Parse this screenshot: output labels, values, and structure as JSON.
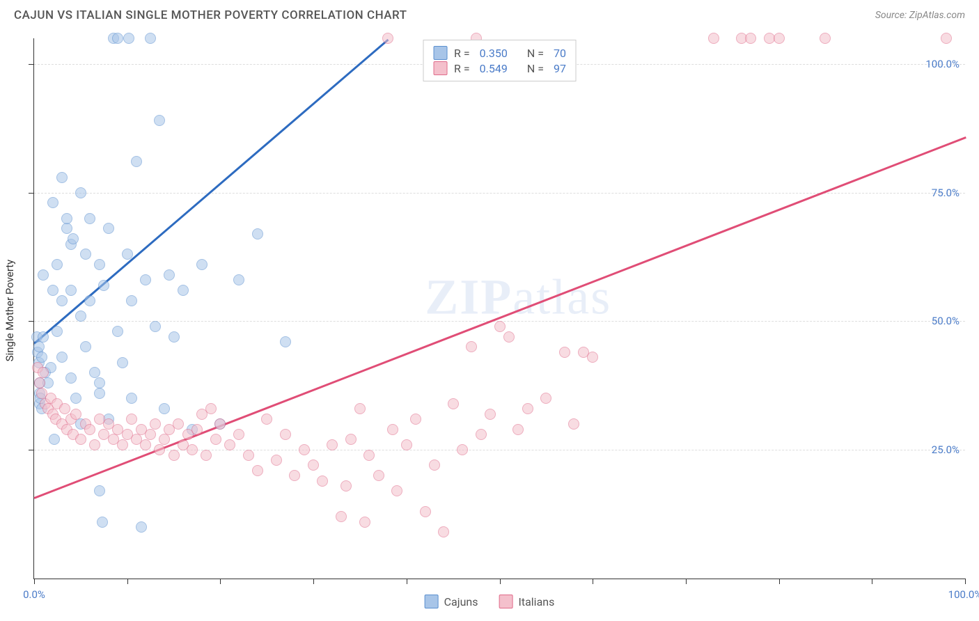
{
  "title": "CAJUN VS ITALIAN SINGLE MOTHER POVERTY CORRELATION CHART",
  "source": "Source: ZipAtlas.com",
  "ylabel": "Single Mother Poverty",
  "watermark_part1": "ZIP",
  "watermark_part2": "atlas",
  "chart": {
    "type": "scatter",
    "xlim": [
      0,
      100
    ],
    "ylim": [
      0,
      105
    ],
    "background_color": "#ffffff",
    "grid_color": "#dddddd",
    "axis_color": "#333333",
    "tick_label_color": "#4a7bc8",
    "label_fontsize": 15,
    "point_radius": 8,
    "point_opacity": 0.55,
    "line_width": 2.5,
    "y_gridlines": [
      25,
      50,
      75,
      100
    ],
    "y_tick_labels": [
      "25.0%",
      "50.0%",
      "75.0%",
      "100.0%"
    ],
    "x_ticks": [
      0,
      10,
      20,
      30,
      40,
      50,
      60,
      70,
      80,
      90,
      100
    ],
    "x_tick_labels_shown": {
      "0": "0.0%",
      "100": "100.0%"
    }
  },
  "legend_top": [
    {
      "r_label": "R =",
      "r_value": "0.350",
      "n_label": "N =",
      "n_value": "70",
      "swatch_fill": "#a8c5e8",
      "swatch_border": "#5a8fcf"
    },
    {
      "r_label": "R =",
      "r_value": "0.549",
      "n_label": "N =",
      "n_value": "97",
      "swatch_fill": "#f4c0cc",
      "swatch_border": "#e06b8a"
    }
  ],
  "legend_bottom": [
    {
      "label": "Cajuns",
      "swatch_fill": "#a8c5e8",
      "swatch_border": "#5a8fcf"
    },
    {
      "label": "Italians",
      "swatch_fill": "#f4c0cc",
      "swatch_border": "#e06b8a"
    }
  ],
  "series": [
    {
      "name": "Cajuns",
      "point_fill": "#a8c5e8",
      "point_stroke": "#5a8fcf",
      "line_color": "#2d6bc0",
      "trend": {
        "x1": 0,
        "y1": 46,
        "x2": 38,
        "y2": 105
      },
      "points": [
        [
          0.3,
          47
        ],
        [
          0.4,
          44
        ],
        [
          0.5,
          45
        ],
        [
          0.5,
          42
        ],
        [
          0.6,
          34
        ],
        [
          0.6,
          36
        ],
        [
          0.6,
          38
        ],
        [
          0.7,
          35
        ],
        [
          0.8,
          43
        ],
        [
          0.8,
          33
        ],
        [
          1.0,
          59
        ],
        [
          1.0,
          47
        ],
        [
          1.2,
          40
        ],
        [
          1.5,
          38
        ],
        [
          1.8,
          41
        ],
        [
          2.0,
          56
        ],
        [
          2.0,
          73
        ],
        [
          2.2,
          27
        ],
        [
          2.5,
          48
        ],
        [
          2.5,
          61
        ],
        [
          3.0,
          43
        ],
        [
          3.0,
          54
        ],
        [
          3.0,
          78
        ],
        [
          3.5,
          68
        ],
        [
          3.5,
          70
        ],
        [
          4.0,
          65
        ],
        [
          4.0,
          56
        ],
        [
          4.0,
          39
        ],
        [
          4.2,
          66
        ],
        [
          4.5,
          35
        ],
        [
          5.0,
          51
        ],
        [
          5.0,
          75
        ],
        [
          5.0,
          30
        ],
        [
          5.5,
          45
        ],
        [
          5.5,
          63
        ],
        [
          6.0,
          54
        ],
        [
          6.0,
          70
        ],
        [
          6.5,
          40
        ],
        [
          7.0,
          61
        ],
        [
          7.0,
          36
        ],
        [
          7.0,
          17
        ],
        [
          7.0,
          38
        ],
        [
          7.3,
          11
        ],
        [
          7.5,
          57
        ],
        [
          8.0,
          31
        ],
        [
          8.0,
          68
        ],
        [
          8.5,
          105
        ],
        [
          9.0,
          48
        ],
        [
          9.0,
          105
        ],
        [
          9.5,
          42
        ],
        [
          10.0,
          63
        ],
        [
          10.2,
          105
        ],
        [
          10.5,
          35
        ],
        [
          10.5,
          54
        ],
        [
          11.0,
          81
        ],
        [
          11.5,
          10
        ],
        [
          12.0,
          58
        ],
        [
          12.5,
          105
        ],
        [
          13.0,
          49
        ],
        [
          13.5,
          89
        ],
        [
          14.0,
          33
        ],
        [
          14.5,
          59
        ],
        [
          15.0,
          47
        ],
        [
          16.0,
          56
        ],
        [
          17.0,
          29
        ],
        [
          18.0,
          61
        ],
        [
          20.0,
          30
        ],
        [
          22.0,
          58
        ],
        [
          24.0,
          67
        ],
        [
          27.0,
          46
        ]
      ]
    },
    {
      "name": "Italians",
      "point_fill": "#f4c0cc",
      "point_stroke": "#e06b8a",
      "line_color": "#e04d76",
      "trend": {
        "x1": 0,
        "y1": 16,
        "x2": 100,
        "y2": 86
      },
      "points": [
        [
          0.4,
          41
        ],
        [
          0.6,
          38
        ],
        [
          0.8,
          36
        ],
        [
          1.0,
          40
        ],
        [
          1.2,
          34
        ],
        [
          1.5,
          33
        ],
        [
          1.8,
          35
        ],
        [
          2.0,
          32
        ],
        [
          2.3,
          31
        ],
        [
          2.5,
          34
        ],
        [
          3.0,
          30
        ],
        [
          3.3,
          33
        ],
        [
          3.5,
          29
        ],
        [
          4.0,
          31
        ],
        [
          4.2,
          28
        ],
        [
          4.5,
          32
        ],
        [
          5.0,
          27
        ],
        [
          5.5,
          30
        ],
        [
          6.0,
          29
        ],
        [
          6.5,
          26
        ],
        [
          7.0,
          31
        ],
        [
          7.5,
          28
        ],
        [
          8.0,
          30
        ],
        [
          8.5,
          27
        ],
        [
          9.0,
          29
        ],
        [
          9.5,
          26
        ],
        [
          10.0,
          28
        ],
        [
          10.5,
          31
        ],
        [
          11.0,
          27
        ],
        [
          11.5,
          29
        ],
        [
          12.0,
          26
        ],
        [
          12.5,
          28
        ],
        [
          13.0,
          30
        ],
        [
          13.5,
          25
        ],
        [
          14.0,
          27
        ],
        [
          14.5,
          29
        ],
        [
          15.0,
          24
        ],
        [
          15.5,
          30
        ],
        [
          16.0,
          26
        ],
        [
          16.5,
          28
        ],
        [
          17.0,
          25
        ],
        [
          17.5,
          29
        ],
        [
          18.0,
          32
        ],
        [
          18.5,
          24
        ],
        [
          19.0,
          33
        ],
        [
          19.5,
          27
        ],
        [
          20.0,
          30
        ],
        [
          21.0,
          26
        ],
        [
          22.0,
          28
        ],
        [
          23.0,
          24
        ],
        [
          24.0,
          21
        ],
        [
          25.0,
          31
        ],
        [
          26.0,
          23
        ],
        [
          27.0,
          28
        ],
        [
          28.0,
          20
        ],
        [
          29.0,
          25
        ],
        [
          30.0,
          22
        ],
        [
          31.0,
          19
        ],
        [
          32.0,
          26
        ],
        [
          33.0,
          12
        ],
        [
          33.5,
          18
        ],
        [
          34.0,
          27
        ],
        [
          35.0,
          33
        ],
        [
          35.5,
          11
        ],
        [
          36.0,
          24
        ],
        [
          37.0,
          20
        ],
        [
          38.0,
          105
        ],
        [
          38.5,
          29
        ],
        [
          39.0,
          17
        ],
        [
          40.0,
          26
        ],
        [
          41.0,
          31
        ],
        [
          42.0,
          13
        ],
        [
          43.0,
          22
        ],
        [
          44.0,
          9
        ],
        [
          45.0,
          34
        ],
        [
          46.0,
          25
        ],
        [
          47.0,
          45
        ],
        [
          47.5,
          105
        ],
        [
          48.0,
          28
        ],
        [
          49.0,
          32
        ],
        [
          50.0,
          49
        ],
        [
          51.0,
          47
        ],
        [
          52.0,
          29
        ],
        [
          53.0,
          33
        ],
        [
          55.0,
          35
        ],
        [
          57.0,
          44
        ],
        [
          58.0,
          30
        ],
        [
          59.0,
          44
        ],
        [
          60.0,
          43
        ],
        [
          73.0,
          105
        ],
        [
          76.0,
          105
        ],
        [
          77.0,
          105
        ],
        [
          79.0,
          105
        ],
        [
          80.0,
          105
        ],
        [
          85.0,
          105
        ],
        [
          98.0,
          105
        ]
      ]
    }
  ]
}
